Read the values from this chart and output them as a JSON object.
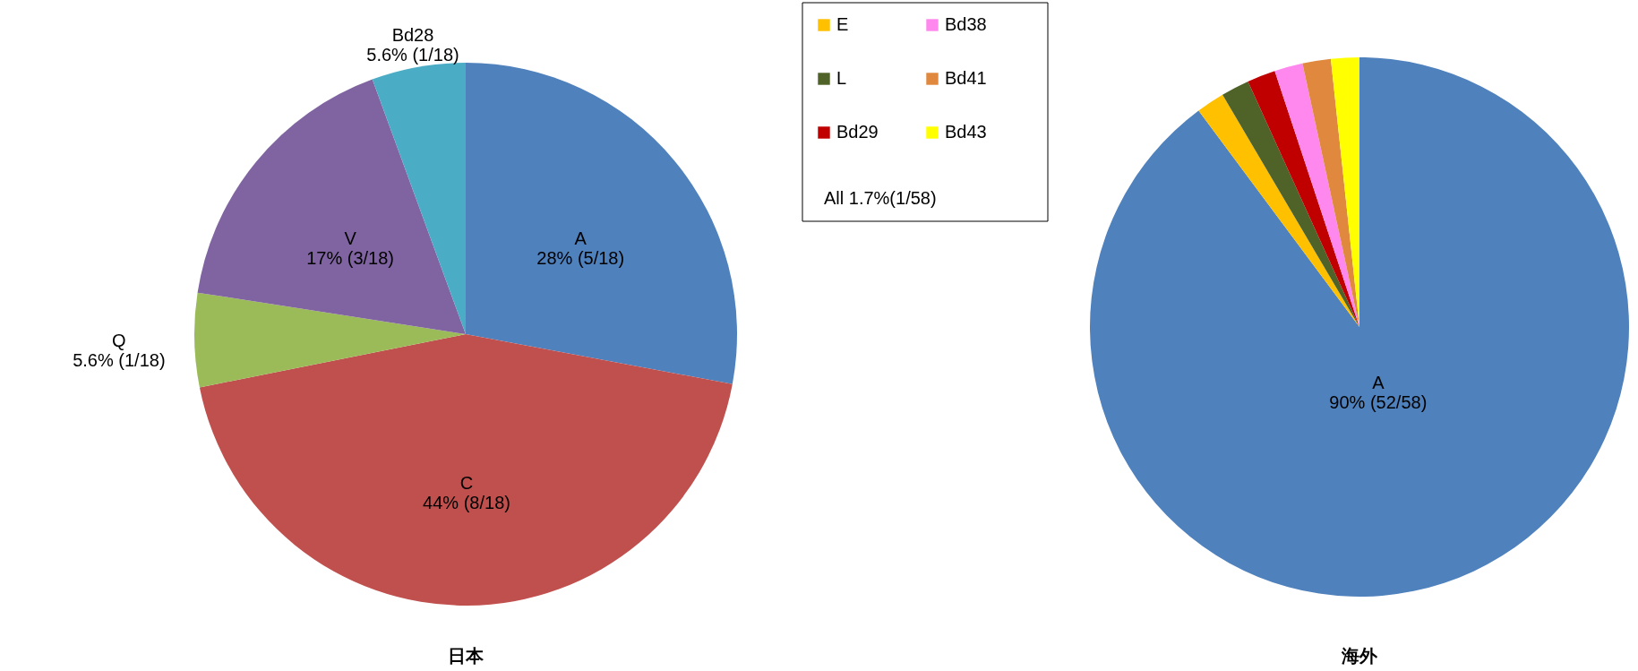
{
  "chart_data": [
    {
      "type": "pie",
      "title": "日本",
      "categories": [
        "A",
        "C",
        "Q",
        "V",
        "Bd28"
      ],
      "values": [
        28,
        44,
        5.6,
        17,
        5.6
      ],
      "value_labels": [
        "28% (5/18)",
        "44% (8/18)",
        "5.6% (1/18)",
        "17% (3/18)",
        "5.6% (1/18)"
      ],
      "colors": [
        "#4f81bd",
        "#c0504d",
        "#9bbb59",
        "#8064a2",
        "#4bacc6"
      ],
      "legend": false
    },
    {
      "type": "pie",
      "title": "海外",
      "categories": [
        "A",
        "E",
        "L",
        "Bd29",
        "Bd38",
        "Bd41",
        "Bd43"
      ],
      "values": [
        90,
        1.7,
        1.7,
        1.7,
        1.7,
        1.7,
        1.7
      ],
      "value_labels": [
        "90% (52/58)",
        null,
        null,
        null,
        null,
        null,
        null
      ],
      "colors": [
        "#4f81bd",
        "#ffc000",
        "#4f6228",
        "#c00000",
        "#ff88ee",
        "#e0883e",
        "#ffff00"
      ],
      "legend": "top left",
      "annotations": [
        "All 1.7%(1/58)"
      ]
    }
  ]
}
